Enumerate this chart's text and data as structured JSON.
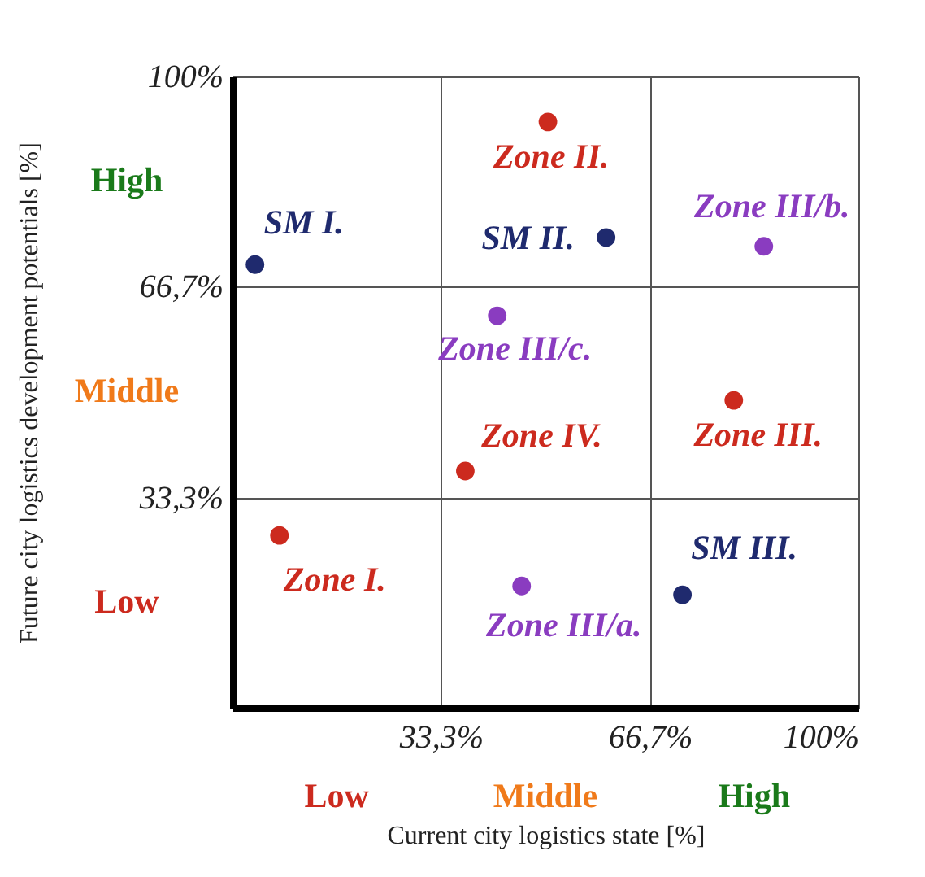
{
  "chart_data": {
    "type": "scatter",
    "xlabel": "Current city logistics state [%]",
    "ylabel": "Future city logistics development potentials [%]",
    "xlim": [
      0,
      100
    ],
    "ylim": [
      0,
      100
    ],
    "xticks": [
      {
        "value": 33.3,
        "label": "33,3%"
      },
      {
        "value": 66.7,
        "label": "66,7%"
      },
      {
        "value": 100,
        "label": "100%"
      }
    ],
    "yticks": [
      {
        "value": 33.3,
        "label": "33,3%"
      },
      {
        "value": 66.7,
        "label": "66,7%"
      },
      {
        "value": 100,
        "label": "100%"
      }
    ],
    "grid": true,
    "marker": "circle",
    "annotations": [
      "Low",
      "Middle",
      "High",
      "Low",
      "Middle",
      "High"
    ],
    "series": [
      {
        "name": "SM I.",
        "color": "#1f2a6e",
        "x": [
          3.6
        ],
        "values": [
          70.2
        ]
      },
      {
        "name": "Zone II.",
        "color": "#cc2a1e",
        "x": [
          50.4
        ],
        "values": [
          92.8
        ]
      },
      {
        "name": "SM II.",
        "color": "#1f2a6e",
        "x": [
          59.7
        ],
        "values": [
          74.5
        ]
      },
      {
        "name": "Zone III/b.",
        "color": "#8a3cc0",
        "x": [
          84.9
        ],
        "values": [
          73.1
        ]
      },
      {
        "name": "Zone III/c.",
        "color": "#8a3cc0",
        "x": [
          42.3
        ],
        "values": [
          62.1
        ]
      },
      {
        "name": "Zone III.",
        "color": "#cc2a1e",
        "x": [
          80.1
        ],
        "values": [
          48.7
        ]
      },
      {
        "name": "Zone IV.",
        "color": "#cc2a1e",
        "x": [
          37.2
        ],
        "values": [
          37.5
        ]
      },
      {
        "name": "Zone I.",
        "color": "#cc2a1e",
        "x": [
          7.5
        ],
        "values": [
          27.3
        ]
      },
      {
        "name": "Zone III/a.",
        "color": "#8a3cc0",
        "x": [
          46.2
        ],
        "values": [
          19.3
        ]
      },
      {
        "name": "SM III.",
        "color": "#1f2a6e",
        "x": [
          71.9
        ],
        "values": [
          17.9
        ]
      }
    ]
  }
}
